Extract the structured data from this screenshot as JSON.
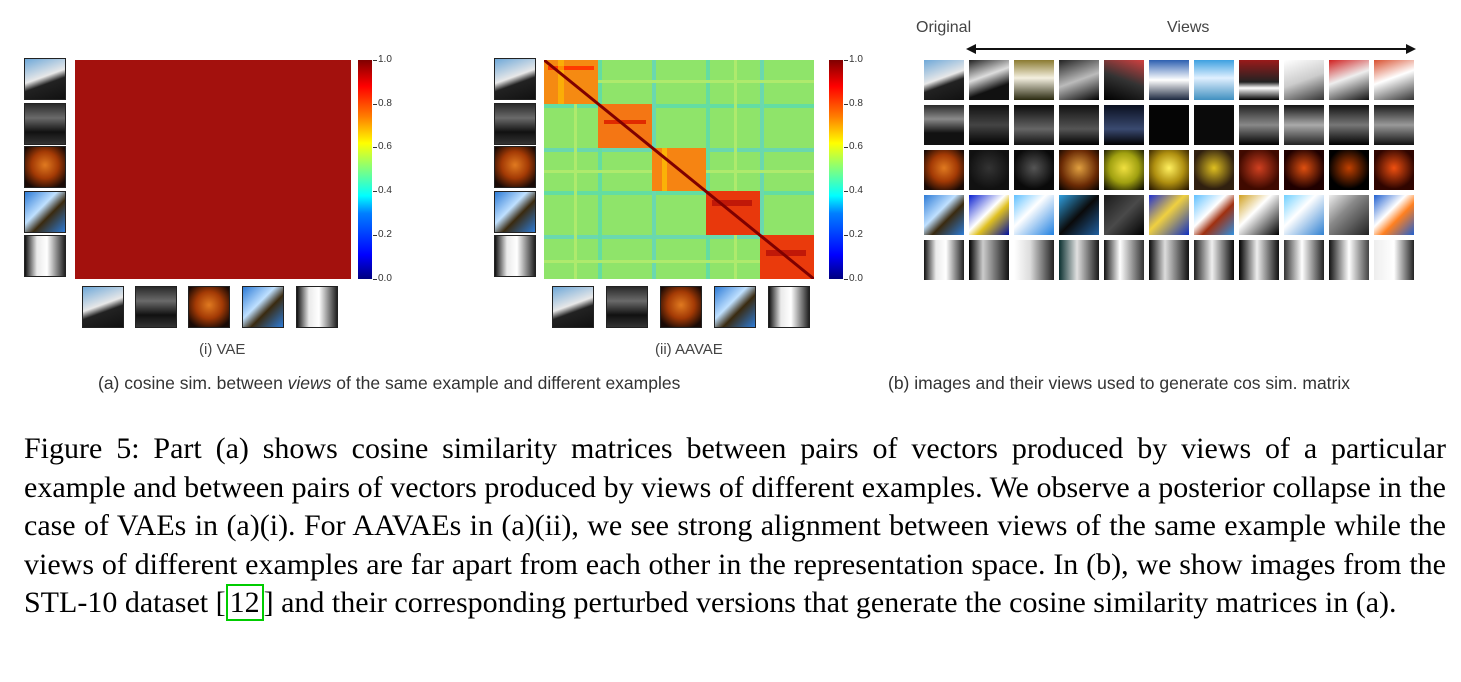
{
  "panel_a": {
    "vae_label": "(i) VAE",
    "aavae_label": "(ii) AAVAE",
    "caption_prefix": "(a) cosine sim. between ",
    "caption_em": "views",
    "caption_suffix": " of the same example and different examples",
    "colorbar_ticks": [
      "1.0",
      "0.8",
      "0.6",
      "0.4",
      "0.2",
      "0.0"
    ]
  },
  "panel_b": {
    "original_label": "Original",
    "views_label": "Views",
    "caption": "(b) images and their views used to generate cos sim. matrix"
  },
  "figure_caption": {
    "part1": "Figure 5: Part (a) shows cosine similarity matrices between pairs of vectors produced by views of a particular example and between pairs of vectors produced by views of different examples. We observe a posterior collapse in the case of VAEs in (a)(i). For AAVAEs in (a)(ii), we see strong alignment between views of the same example while the views of different examples are far apart from each other in the representation space. In (b), we show images from the STL-10 dataset [",
    "ref": "12",
    "part2": "] and their corresponding perturbed versions that generate the cosine similarity matrices in (a)."
  },
  "colors": {
    "vae_matrix": "#a3110d",
    "ref_box": "#00cc00"
  }
}
